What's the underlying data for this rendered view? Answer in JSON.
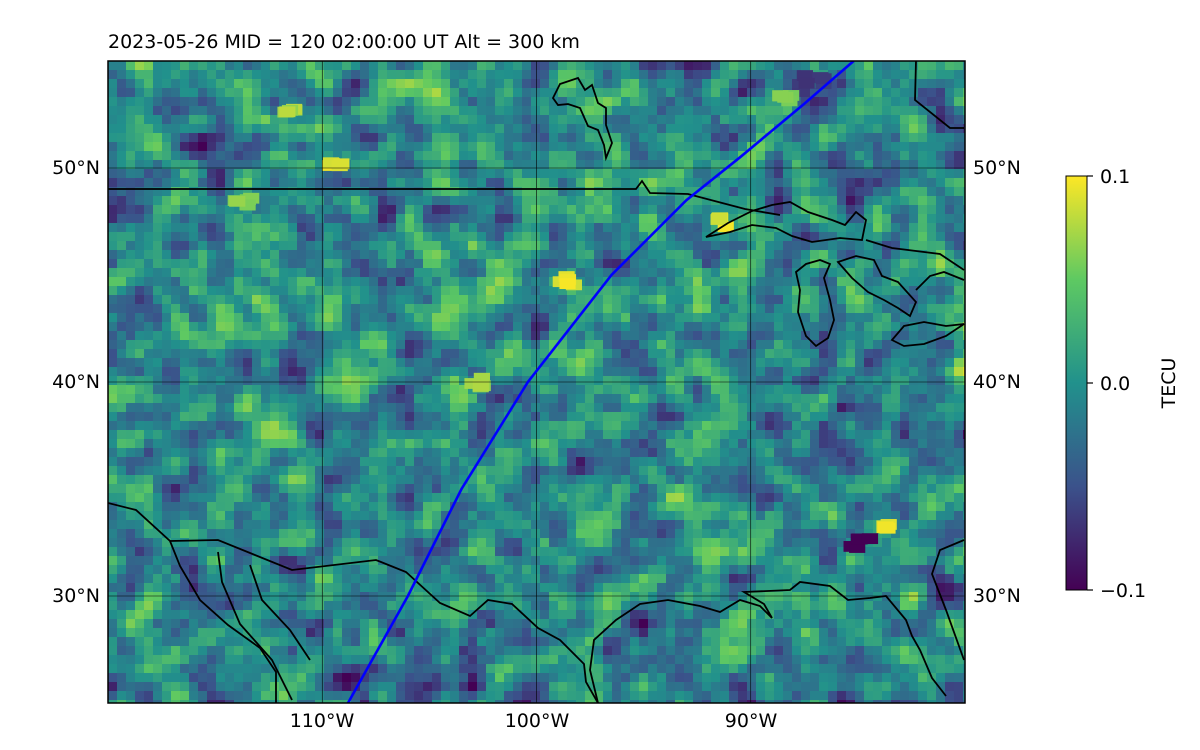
{
  "title": "2023-05-26  MID = 120    02:00:00  UT  Alt = 300 km",
  "map": {
    "lon_range": [
      -120,
      -80
    ],
    "lat_range": [
      25,
      55
    ],
    "lat_ticks": [
      {
        "value": 50,
        "label": "50°N"
      },
      {
        "value": 40,
        "label": "40°N"
      },
      {
        "value": 30,
        "label": "30°N"
      }
    ],
    "lon_ticks": [
      {
        "value": -110,
        "label": "110°W"
      },
      {
        "value": -100,
        "label": "100°W"
      },
      {
        "value": -90,
        "label": "90°W"
      }
    ],
    "grid": true,
    "field": "dTEC perturbation heatmap (viridis)",
    "track_color": "#0000ff",
    "track": [
      [
        -108.8,
        25.0
      ],
      [
        -106.0,
        30.0
      ],
      [
        -103.5,
        35.0
      ],
      [
        -100.4,
        40.0
      ],
      [
        -96.5,
        45.0
      ],
      [
        -93.0,
        48.5
      ],
      [
        -90.5,
        50.5
      ],
      [
        -87.5,
        53.0
      ],
      [
        -85.2,
        55.0
      ]
    ],
    "coast_color": "#000000"
  },
  "colorbar": {
    "label": "TECU",
    "min": -0.1,
    "max": 0.1,
    "ticks": [
      {
        "value": 0.1,
        "label": "0.1"
      },
      {
        "value": 0.0,
        "label": "0.0"
      },
      {
        "value": -0.1,
        "label": "−0.1"
      }
    ],
    "colormap": [
      "#440154",
      "#3b528b",
      "#21918c",
      "#5ec962",
      "#fde725"
    ]
  },
  "anomalies": [
    {
      "lon": -109.5,
      "lat": 50.2,
      "value": 0.1
    },
    {
      "lon": -111.5,
      "lat": 52.8,
      "value": 0.08
    },
    {
      "lon": -98.5,
      "lat": 44.8,
      "value": 0.1
    },
    {
      "lon": -91.5,
      "lat": 47.5,
      "value": 0.1
    },
    {
      "lon": -88.5,
      "lat": 53.3,
      "value": 0.07
    },
    {
      "lon": -83.3,
      "lat": 33.3,
      "value": 0.1
    },
    {
      "lon": -84.8,
      "lat": 32.5,
      "value": -0.1
    },
    {
      "lon": -102.5,
      "lat": 40.0,
      "value": 0.08
    },
    {
      "lon": -113.6,
      "lat": 48.5,
      "value": 0.07
    },
    {
      "lon": -87.0,
      "lat": 54.2,
      "value": -0.06
    }
  ]
}
